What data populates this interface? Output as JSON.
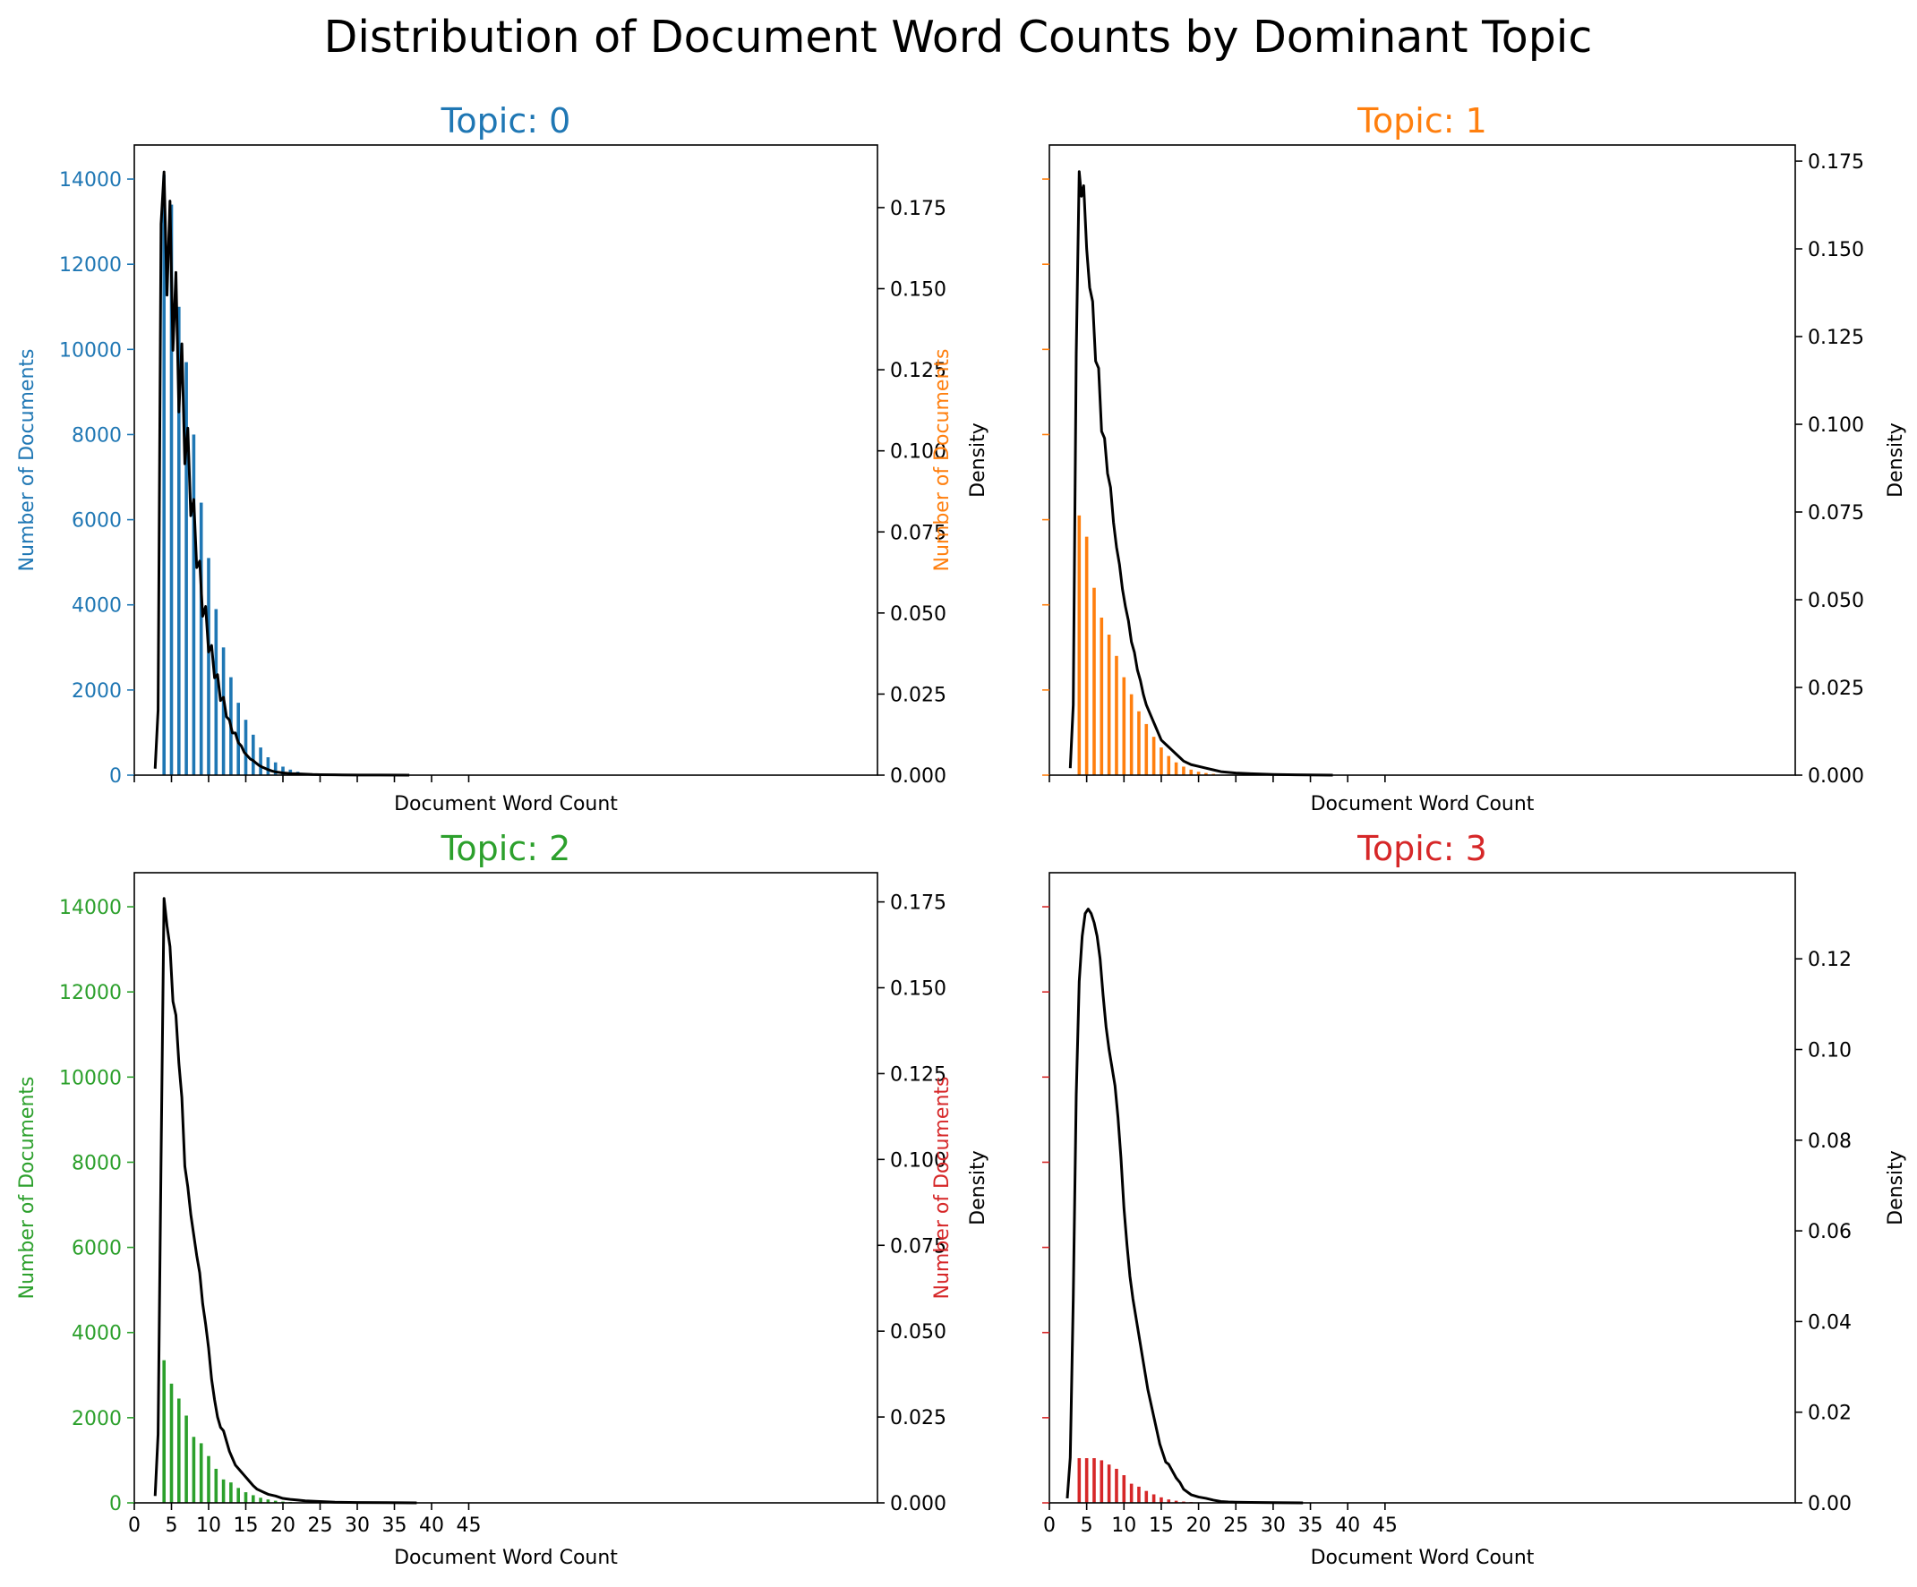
{
  "figure": {
    "suptitle": "Distribution of Document Word Counts by Dominant Topic",
    "background": "#ffffff"
  },
  "chart_data": [
    {
      "type": "bar",
      "subtype": "histogram_with_density",
      "title": "Topic: 0",
      "color": "#1f77b4",
      "xlabel": "Document Word Count",
      "ylabel": "Number of Documents",
      "ylabel_right": "Density",
      "xlim": [
        0,
        100
      ],
      "ylim": [
        0,
        14800
      ],
      "ylim_right": [
        0,
        0.1943
      ],
      "yticks": [
        0,
        2000,
        4000,
        6000,
        8000,
        10000,
        12000,
        14000
      ],
      "yticks_right": [
        0.0,
        0.025,
        0.05,
        0.075,
        0.1,
        0.125,
        0.15,
        0.175
      ],
      "xticks": [
        0,
        5,
        10,
        15,
        20,
        25,
        30,
        35,
        40,
        45
      ],
      "show_yticklabels": true,
      "show_xticklabels": false,
      "bins": [
        4,
        5,
        6,
        7,
        8,
        9,
        10,
        11,
        12,
        13,
        14,
        15,
        16,
        17,
        18,
        19,
        20,
        21,
        22,
        23,
        24,
        25
      ],
      "counts": [
        14100,
        13400,
        11000,
        9700,
        8000,
        6400,
        5100,
        3900,
        3000,
        2300,
        1700,
        1300,
        950,
        650,
        420,
        300,
        200,
        130,
        80,
        50,
        30,
        20
      ],
      "density": {
        "x": [
          2.8,
          3.2,
          3.6,
          4.0,
          4.4,
          4.8,
          5.2,
          5.6,
          6.0,
          6.4,
          6.8,
          7.2,
          7.6,
          8.0,
          8.4,
          8.8,
          9.2,
          9.6,
          10.0,
          10.4,
          10.8,
          11.2,
          11.6,
          12.0,
          12.4,
          12.8,
          13.2,
          13.6,
          14.0,
          14.4,
          14.8,
          15.2,
          15.6,
          16.0,
          16.4,
          16.8,
          17.2,
          17.6,
          18.0,
          18.5,
          19.0,
          20,
          21,
          22,
          23,
          24,
          25,
          27,
          30,
          33,
          37
        ],
        "y": [
          0.002,
          0.02,
          0.17,
          0.186,
          0.148,
          0.177,
          0.131,
          0.155,
          0.112,
          0.133,
          0.096,
          0.107,
          0.08,
          0.085,
          0.064,
          0.066,
          0.049,
          0.052,
          0.038,
          0.04,
          0.03,
          0.031,
          0.023,
          0.024,
          0.018,
          0.017,
          0.013,
          0.013,
          0.01,
          0.009,
          0.007,
          0.006,
          0.005,
          0.0045,
          0.0037,
          0.003,
          0.0025,
          0.0021,
          0.0017,
          0.0013,
          0.001,
          0.0007,
          0.0005,
          0.0004,
          0.0003,
          0.0002,
          0.00015,
          0.0001,
          5e-05,
          2e-05,
          0.0
        ]
      }
    },
    {
      "type": "bar",
      "subtype": "histogram_with_density",
      "title": "Topic: 1",
      "color": "#ff7f0e",
      "xlabel": "Document Word Count",
      "ylabel": "Number of Documents",
      "ylabel_right": "Density",
      "xlim": [
        0,
        100
      ],
      "ylim": [
        0,
        14800
      ],
      "ylim_right": [
        0,
        0.1796
      ],
      "yticks": [
        0,
        2000,
        4000,
        6000,
        8000,
        10000,
        12000,
        14000
      ],
      "yticks_right": [
        0.0,
        0.025,
        0.05,
        0.075,
        0.1,
        0.125,
        0.15,
        0.175
      ],
      "xticks": [
        0,
        5,
        10,
        15,
        20,
        25,
        30,
        35,
        40,
        45
      ],
      "show_yticklabels": false,
      "show_xticklabels": false,
      "bins": [
        4,
        5,
        6,
        7,
        8,
        9,
        10,
        11,
        12,
        13,
        14,
        15,
        16,
        17,
        18,
        19,
        20,
        21,
        22
      ],
      "counts": [
        6100,
        5600,
        4400,
        3700,
        3300,
        2800,
        2300,
        1900,
        1500,
        1200,
        900,
        650,
        450,
        300,
        200,
        130,
        80,
        50,
        30
      ],
      "density": {
        "x": [
          2.8,
          3.2,
          3.6,
          4.0,
          4.3,
          4.6,
          5.0,
          5.4,
          5.8,
          6.2,
          6.6,
          7.0,
          7.4,
          7.8,
          8.2,
          8.6,
          9.0,
          9.4,
          9.8,
          10.2,
          10.6,
          11.0,
          11.4,
          11.8,
          12.2,
          12.6,
          13.0,
          13.4,
          13.8,
          14.2,
          14.6,
          15.0,
          15.5,
          16.0,
          16.5,
          17.0,
          17.5,
          18,
          19,
          20,
          21,
          22,
          23,
          24,
          25,
          27,
          30,
          33,
          38
        ],
        "y": [
          0.002,
          0.02,
          0.12,
          0.172,
          0.165,
          0.168,
          0.15,
          0.139,
          0.135,
          0.118,
          0.116,
          0.098,
          0.096,
          0.086,
          0.082,
          0.072,
          0.065,
          0.06,
          0.053,
          0.048,
          0.044,
          0.038,
          0.035,
          0.03,
          0.027,
          0.023,
          0.02,
          0.018,
          0.016,
          0.014,
          0.012,
          0.01,
          0.009,
          0.008,
          0.007,
          0.006,
          0.005,
          0.004,
          0.003,
          0.0025,
          0.002,
          0.0015,
          0.001,
          0.0008,
          0.0006,
          0.0004,
          0.0002,
          0.0001,
          0.0
        ]
      }
    },
    {
      "type": "bar",
      "subtype": "histogram_with_density",
      "title": "Topic: 2",
      "color": "#2ca02c",
      "xlabel": "Document Word Count",
      "ylabel": "Number of Documents",
      "ylabel_right": "Density",
      "xlim": [
        0,
        100
      ],
      "ylim": [
        0,
        14800
      ],
      "ylim_right": [
        0,
        0.1835
      ],
      "yticks": [
        0,
        2000,
        4000,
        6000,
        8000,
        10000,
        12000,
        14000
      ],
      "yticks_right": [
        0.0,
        0.025,
        0.05,
        0.075,
        0.1,
        0.125,
        0.15,
        0.175
      ],
      "xticks": [
        0,
        5,
        10,
        15,
        20,
        25,
        30,
        35,
        40,
        45
      ],
      "xticklabels": [
        "0",
        "5",
        "10",
        "15",
        "20",
        "25",
        "30",
        "35",
        "40",
        "45"
      ],
      "show_yticklabels": true,
      "show_xticklabels": true,
      "bins": [
        4,
        5,
        6,
        7,
        8,
        9,
        10,
        11,
        12,
        13,
        14,
        15,
        16,
        17,
        18,
        19,
        20,
        21,
        22
      ],
      "counts": [
        3350,
        2800,
        2450,
        2050,
        1550,
        1400,
        1100,
        800,
        550,
        480,
        350,
        250,
        180,
        120,
        80,
        50,
        30,
        20,
        10
      ],
      "density": {
        "x": [
          2.8,
          3.2,
          3.6,
          4.0,
          4.4,
          4.8,
          5.2,
          5.6,
          6.0,
          6.4,
          6.8,
          7.2,
          7.6,
          8.0,
          8.4,
          8.8,
          9.2,
          9.6,
          10.0,
          10.4,
          10.8,
          11.2,
          11.6,
          12.0,
          12.4,
          12.8,
          13.2,
          13.6,
          14.0,
          14.4,
          14.8,
          15.2,
          15.6,
          16.0,
          16.5,
          17.0,
          17.5,
          18,
          19,
          20,
          21,
          22,
          23,
          25,
          27,
          30,
          34,
          38
        ],
        "y": [
          0.002,
          0.02,
          0.1,
          0.176,
          0.168,
          0.162,
          0.146,
          0.142,
          0.128,
          0.118,
          0.098,
          0.092,
          0.084,
          0.078,
          0.072,
          0.067,
          0.058,
          0.052,
          0.045,
          0.036,
          0.03,
          0.025,
          0.022,
          0.021,
          0.018,
          0.015,
          0.013,
          0.011,
          0.01,
          0.009,
          0.008,
          0.007,
          0.006,
          0.005,
          0.004,
          0.0035,
          0.003,
          0.0025,
          0.002,
          0.0013,
          0.001,
          0.0008,
          0.0006,
          0.0004,
          0.0002,
          0.0001,
          5e-05,
          0.0
        ]
      }
    },
    {
      "type": "bar",
      "subtype": "histogram_with_density",
      "title": "Topic: 3",
      "color": "#d62728",
      "xlabel": "Document Word Count",
      "ylabel": "Number of Documents",
      "ylabel_right": "Density",
      "xlim": [
        0,
        100
      ],
      "ylim": [
        0,
        14800
      ],
      "ylim_right": [
        0,
        0.139
      ],
      "yticks": [
        0,
        2000,
        4000,
        6000,
        8000,
        10000,
        12000,
        14000
      ],
      "yticks_right": [
        0.0,
        0.02,
        0.04,
        0.06,
        0.08,
        0.1,
        0.12
      ],
      "xticks": [
        0,
        5,
        10,
        15,
        20,
        25,
        30,
        35,
        40,
        45
      ],
      "xticklabels": [
        "0",
        "5",
        "10",
        "15",
        "20",
        "25",
        "30",
        "35",
        "40",
        "45"
      ],
      "show_yticklabels": false,
      "show_xticklabels": true,
      "bins": [
        4,
        5,
        6,
        7,
        8,
        9,
        10,
        11,
        12,
        13,
        14,
        15,
        16,
        17,
        18,
        19,
        20,
        21,
        22
      ],
      "counts": [
        1050,
        1050,
        1050,
        1000,
        900,
        800,
        650,
        450,
        380,
        280,
        200,
        130,
        80,
        50,
        30,
        20,
        10,
        8,
        5
      ],
      "density": {
        "x": [
          2.4,
          2.8,
          3.2,
          3.6,
          4.0,
          4.4,
          4.8,
          5.2,
          5.6,
          6.0,
          6.4,
          6.8,
          7.2,
          7.6,
          8.0,
          8.4,
          8.8,
          9.2,
          9.6,
          10.0,
          10.4,
          10.8,
          11.2,
          11.6,
          12.0,
          12.4,
          12.8,
          13.2,
          13.6,
          14.0,
          14.4,
          14.8,
          15.2,
          15.6,
          16.0,
          16.5,
          17.0,
          17.5,
          18,
          19,
          20,
          21,
          22,
          23,
          24,
          25,
          27,
          30,
          34
        ],
        "y": [
          0.001,
          0.01,
          0.045,
          0.09,
          0.115,
          0.125,
          0.13,
          0.131,
          0.13,
          0.128,
          0.125,
          0.12,
          0.112,
          0.105,
          0.1,
          0.096,
          0.092,
          0.085,
          0.076,
          0.065,
          0.057,
          0.05,
          0.045,
          0.041,
          0.037,
          0.033,
          0.029,
          0.025,
          0.022,
          0.019,
          0.016,
          0.013,
          0.011,
          0.009,
          0.0085,
          0.007,
          0.0055,
          0.0045,
          0.003,
          0.0018,
          0.0013,
          0.001,
          0.0006,
          0.0003,
          0.0002,
          0.00015,
          0.0001,
          5e-05,
          0.0
        ]
      }
    }
  ]
}
